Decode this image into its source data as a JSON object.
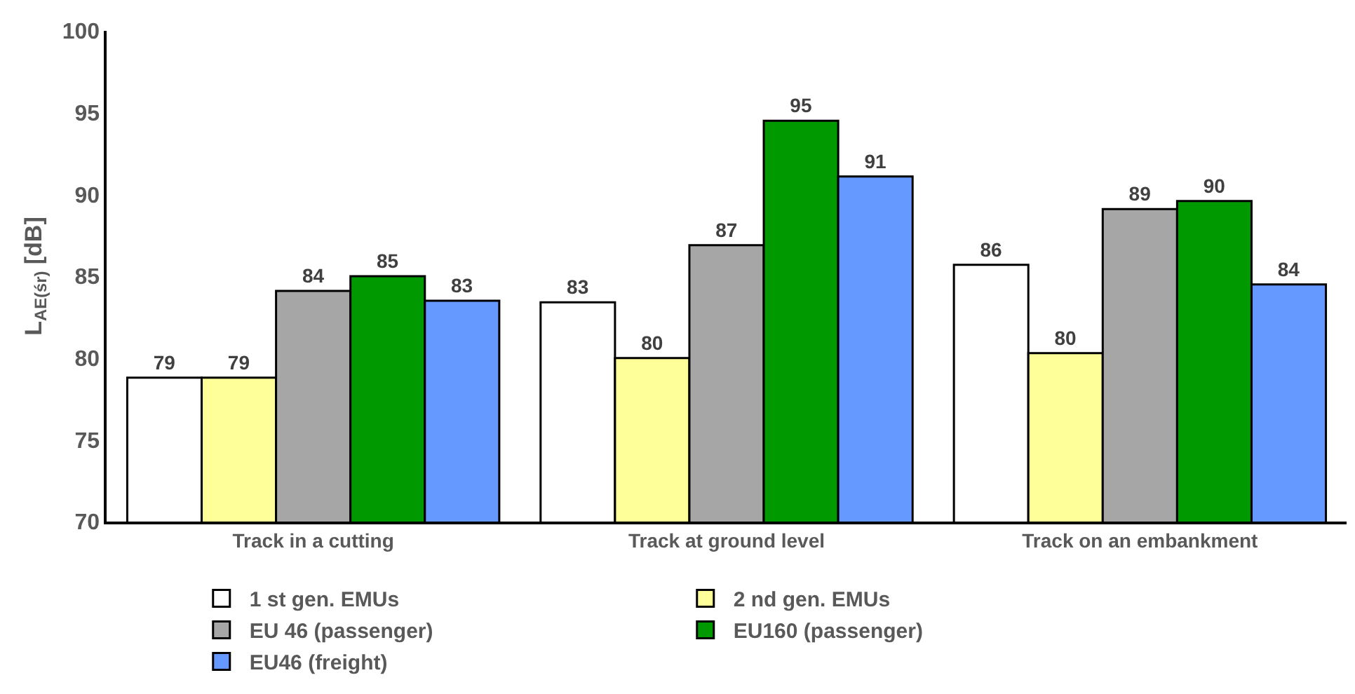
{
  "chart_data": {
    "type": "bar",
    "ylabel": "L$_{AE(śr)}$ [dB]",
    "categories": [
      "Track in a cutting",
      "Track at ground level",
      "Track on an embankment"
    ],
    "series": [
      {
        "name": "1 st gen. EMUs",
        "color": "#ffffff",
        "values": [
          78.8,
          83.4,
          85.7
        ],
        "value_labels": [
          "79",
          "83",
          "86"
        ]
      },
      {
        "name": "2 nd gen. EMUs",
        "color": "#ffff99",
        "values": [
          78.8,
          80.0,
          80.3
        ],
        "value_labels": [
          "79",
          "80",
          "80"
        ]
      },
      {
        "name": "EU 46 (passenger)",
        "color": "#a6a6a6",
        "values": [
          84.1,
          86.9,
          89.1
        ],
        "value_labels": [
          "84",
          "87",
          "89"
        ]
      },
      {
        "name": "EU160 (passenger)",
        "color": "#009900",
        "values": [
          85.0,
          94.5,
          89.6
        ],
        "value_labels": [
          "85",
          "95",
          "90"
        ]
      },
      {
        "name": "EU46 (freight)",
        "color": "#6699ff",
        "values": [
          83.5,
          91.1,
          84.5
        ],
        "value_labels": [
          "83",
          "91",
          "84"
        ]
      }
    ],
    "ylim": [
      70,
      100
    ],
    "yticks": [
      70,
      75,
      80,
      85,
      90,
      95,
      100
    ],
    "grid": false,
    "legend": "bottom"
  }
}
